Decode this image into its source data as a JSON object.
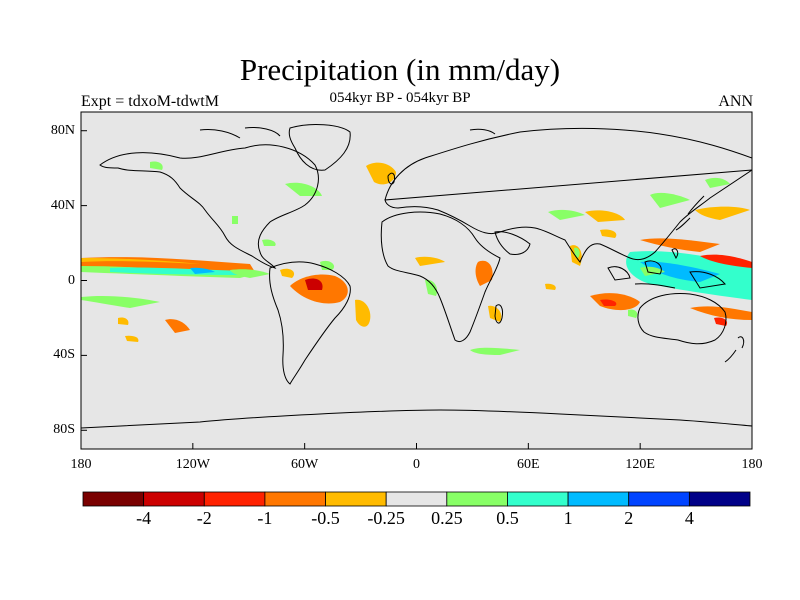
{
  "title": "Precipitation (in mm/day)",
  "subtitle": "054kyr BP - 054kyr BP",
  "expt_label": "Expt = tdxoM-tdwtM",
  "season": "ANN",
  "colors": {
    "ocean_land_background": "#e6e6e6",
    "coastline": "#000000",
    "colorbar": [
      "#7a0000",
      "#cc0000",
      "#ff2200",
      "#ff7700",
      "#ffbb00",
      "#e6e6e6",
      "#88ff66",
      "#33ffcc",
      "#00bbff",
      "#0044ff",
      "#000088"
    ]
  },
  "map": {
    "projection": "cylindrical equidistant",
    "lon_range": [
      -180,
      180
    ],
    "lat_range": [
      -90,
      90
    ],
    "x_ticks": [
      "180",
      "120W",
      "60W",
      "0",
      "60E",
      "120E",
      "180"
    ],
    "y_ticks": [
      "80N",
      "40N",
      "0",
      "40S",
      "80S"
    ]
  },
  "colorbar": {
    "labels": [
      "-4",
      "-2",
      "-1",
      "-0.5",
      "-0.25",
      "0.25",
      "0.5",
      "1",
      "2",
      "4"
    ]
  },
  "features": [
    {
      "name": "east-pacific-itcz-dry",
      "level": "-1",
      "lon": -150,
      "lat": 7
    },
    {
      "name": "east-pacific-wet",
      "level": "1",
      "lon": -120,
      "lat": 5
    },
    {
      "name": "amazon-dry",
      "level": "-2",
      "lon": -55,
      "lat": -3
    },
    {
      "name": "west-pacific-wet",
      "level": "1",
      "lon": 140,
      "lat": 10
    },
    {
      "name": "maritime-continent-dry",
      "level": "-1",
      "lon": 105,
      "lat": -12
    },
    {
      "name": "north-atlantic-dry",
      "level": "-0.5",
      "lon": -20,
      "lat": 58
    },
    {
      "name": "indian-ocean-dry",
      "level": "-0.5",
      "lon": 85,
      "lat": 10
    }
  ]
}
